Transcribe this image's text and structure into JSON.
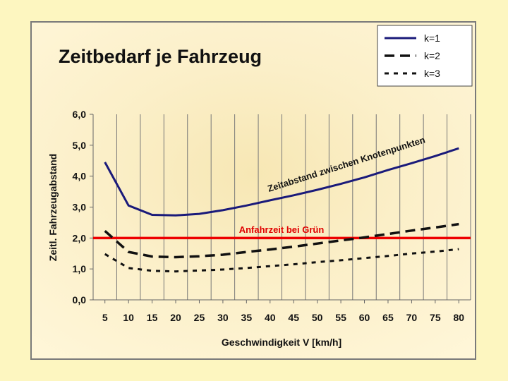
{
  "chart_data": {
    "type": "line",
    "title": "Zeitbedarf je Fahrzeug",
    "xlabel": "Geschwindigkeit V [km/h]",
    "ylabel": "Zeitl. Fahrzeugabstand",
    "x": [
      5,
      10,
      15,
      20,
      25,
      30,
      35,
      40,
      45,
      50,
      55,
      60,
      65,
      70,
      75,
      80
    ],
    "xticks": [
      "5",
      "10",
      "15",
      "20",
      "25",
      "30",
      "35",
      "40",
      "45",
      "50",
      "55",
      "60",
      "65",
      "70",
      "75",
      "80"
    ],
    "ylim": [
      0,
      6
    ],
    "yticks": [
      "0,0",
      "1,0",
      "2,0",
      "3,0",
      "4,0",
      "5,0",
      "6,0"
    ],
    "grid": "vertical",
    "legend_position": "top-right",
    "series": [
      {
        "name": "k=1",
        "style": "solid",
        "color": "#1a1a7a",
        "values": [
          4.45,
          3.05,
          2.75,
          2.73,
          2.78,
          2.9,
          3.05,
          3.22,
          3.38,
          3.56,
          3.75,
          3.96,
          4.2,
          4.42,
          4.65,
          4.9
        ]
      },
      {
        "name": "k=2",
        "style": "long-dash",
        "color": "#111111",
        "values": [
          2.23,
          1.55,
          1.4,
          1.38,
          1.41,
          1.46,
          1.55,
          1.63,
          1.72,
          1.82,
          1.92,
          2.02,
          2.13,
          2.24,
          2.34,
          2.45
        ]
      },
      {
        "name": "k=3",
        "style": "short-dash",
        "color": "#111111",
        "values": [
          1.48,
          1.03,
          0.94,
          0.92,
          0.95,
          0.98,
          1.03,
          1.09,
          1.15,
          1.22,
          1.28,
          1.35,
          1.42,
          1.5,
          1.56,
          1.64
        ]
      }
    ],
    "reference_line": {
      "y": 2.0,
      "label": "Anfahrzeit bei Grün",
      "color": "#ee0000"
    },
    "annotation": "Zeitabstand zwischen Knotenpunkten"
  }
}
